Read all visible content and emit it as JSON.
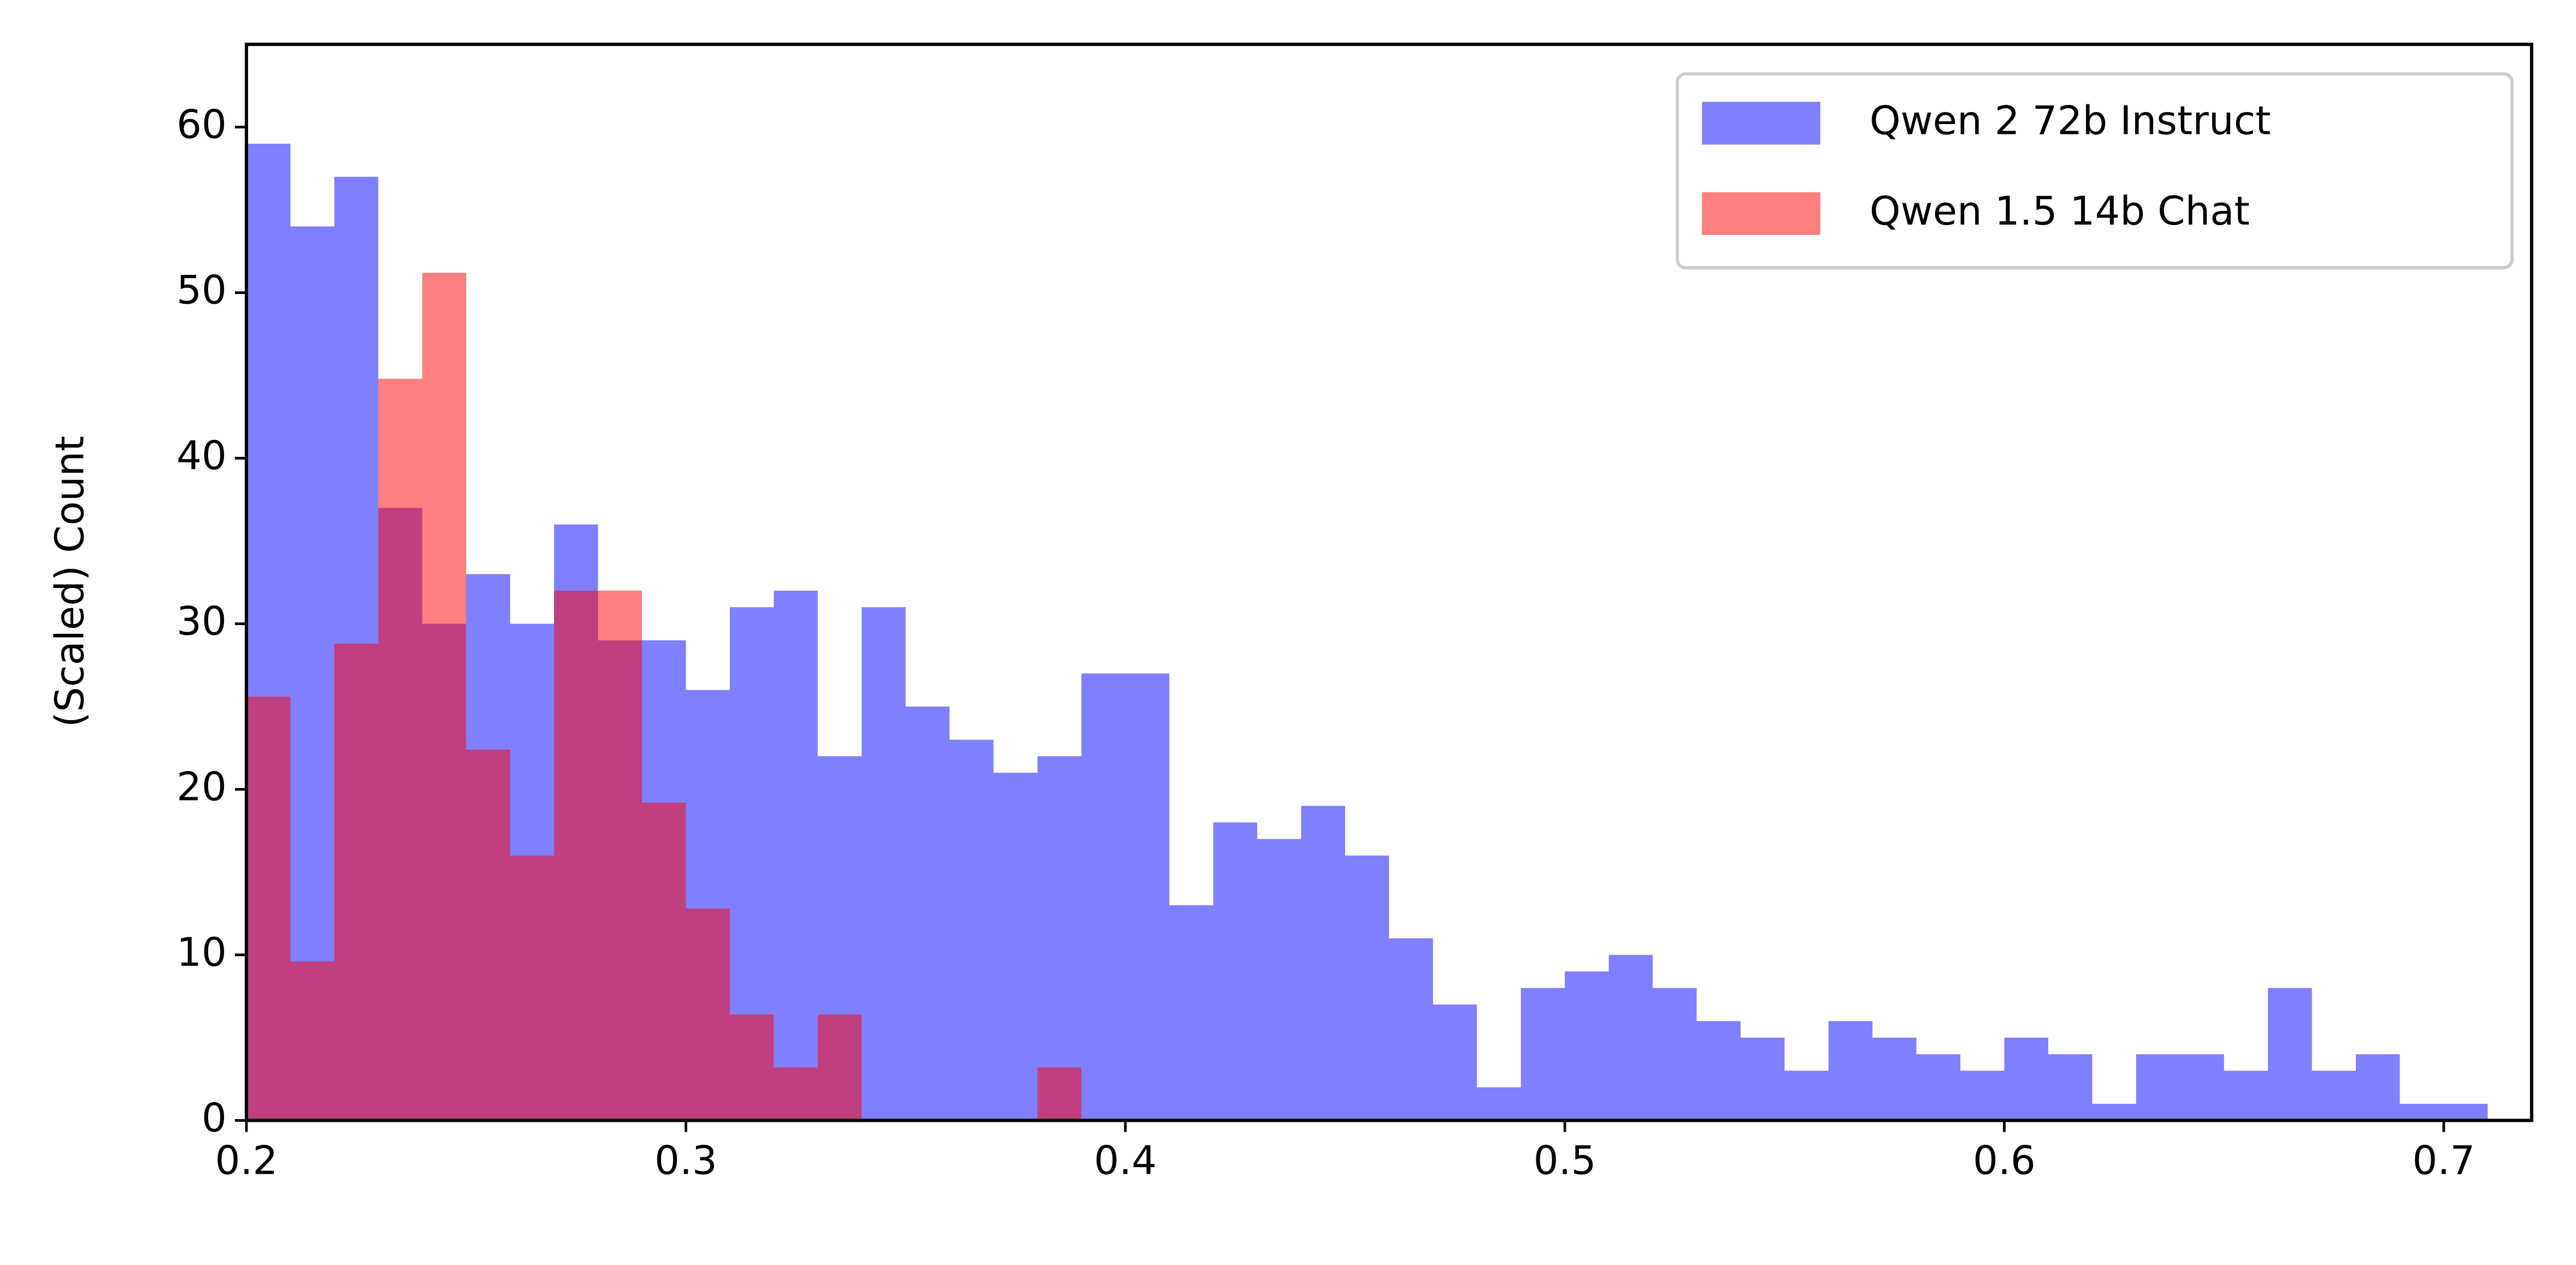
{
  "chart_data": {
    "type": "histogram",
    "ylabel": "(Scaled) Count",
    "bins": [
      0.2,
      0.21,
      0.22,
      0.23,
      0.24,
      0.25,
      0.26,
      0.27,
      0.28,
      0.29,
      0.3,
      0.31,
      0.32,
      0.33,
      0.34,
      0.35,
      0.36,
      0.37,
      0.38,
      0.39,
      0.4,
      0.41,
      0.42,
      0.43,
      0.44,
      0.45,
      0.46,
      0.47,
      0.48,
      0.49,
      0.5,
      0.51,
      0.52,
      0.53,
      0.54,
      0.55,
      0.56,
      0.57,
      0.58,
      0.59,
      0.6,
      0.61,
      0.62,
      0.63,
      0.64,
      0.65,
      0.66,
      0.67,
      0.68,
      0.69,
      0.7,
      0.71
    ],
    "series": [
      {
        "name": "Qwen 2 72b Instruct",
        "color": "#0000ff",
        "alpha": 0.5,
        "values": [
          59,
          54,
          57,
          37,
          30,
          33,
          30,
          36,
          29,
          29,
          26,
          31,
          32,
          22,
          31,
          25,
          23,
          21,
          22,
          27,
          27,
          13,
          18,
          17,
          19,
          16,
          11,
          7,
          2,
          8,
          9,
          10,
          8,
          6,
          5,
          3,
          6,
          5,
          4,
          3,
          5,
          4,
          1,
          4,
          4,
          3,
          8,
          3,
          4,
          1,
          1
        ]
      },
      {
        "name": "Qwen 1.5 14b Chat",
        "color": "#ff0000",
        "alpha": 0.5,
        "values": [
          25.6,
          9.6,
          28.8,
          44.8,
          51.2,
          22.4,
          16,
          32,
          32,
          19.2,
          12.8,
          6.4,
          3.2,
          6.4,
          0,
          0,
          0,
          0,
          3.2,
          0,
          0,
          0,
          0,
          0,
          0,
          0,
          0,
          0,
          0,
          0,
          0,
          0,
          0,
          0,
          0,
          0,
          0,
          0,
          0,
          0,
          0,
          0,
          0,
          0,
          0,
          0,
          0,
          0,
          0,
          0,
          0
        ]
      }
    ],
    "xlim": [
      0.2,
      0.72
    ],
    "ylim": [
      0,
      65
    ],
    "xticks": [
      0.2,
      0.3,
      0.4,
      0.5,
      0.6,
      0.7
    ],
    "yticks": [
      0,
      10,
      20,
      30,
      40,
      50,
      60
    ],
    "legend": "upper right"
  }
}
